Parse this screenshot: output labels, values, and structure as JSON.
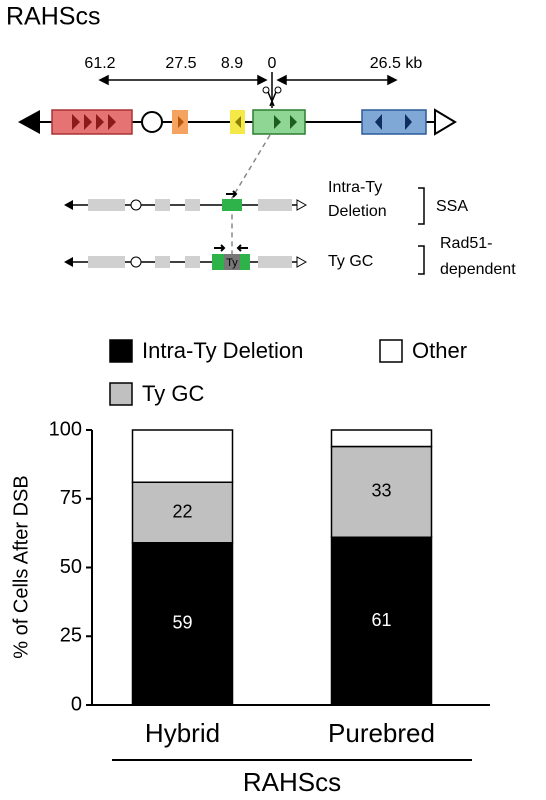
{
  "diagram": {
    "title": "RAHScs",
    "distances": [
      "61.2",
      "27.5",
      "8.9",
      "0",
      "26.5 kb"
    ],
    "ty_label": "Ty",
    "outcomes": [
      {
        "label_lines": [
          "Intra-Ty",
          "Deletion"
        ],
        "mechanism_lines": [
          "SSA"
        ]
      },
      {
        "label_lines": [
          "Ty GC"
        ],
        "mechanism_lines": [
          "Rad51-",
          "dependent"
        ]
      }
    ]
  },
  "chart_data": {
    "type": "stacked_bar",
    "ylabel": "% of Cells After DSB",
    "xlabel": "RAHScs",
    "categories": [
      "Hybrid",
      "Purebred"
    ],
    "series": [
      {
        "name": "Intra-Ty Deletion",
        "color": "#000000",
        "values": [
          59,
          61
        ],
        "data_labels": true,
        "label_color": "#ffffff"
      },
      {
        "name": "Ty GC",
        "color": "#c0c0c0",
        "values": [
          22,
          33
        ],
        "data_labels": true,
        "label_color": "#000000"
      },
      {
        "name": "Other",
        "color": "#ffffff",
        "values": [
          19,
          6
        ],
        "data_labels": false,
        "label_color": "#000000"
      }
    ],
    "ylim": [
      0,
      100
    ],
    "yticks": [
      0,
      25,
      50,
      75,
      100
    ],
    "grid": false
  }
}
